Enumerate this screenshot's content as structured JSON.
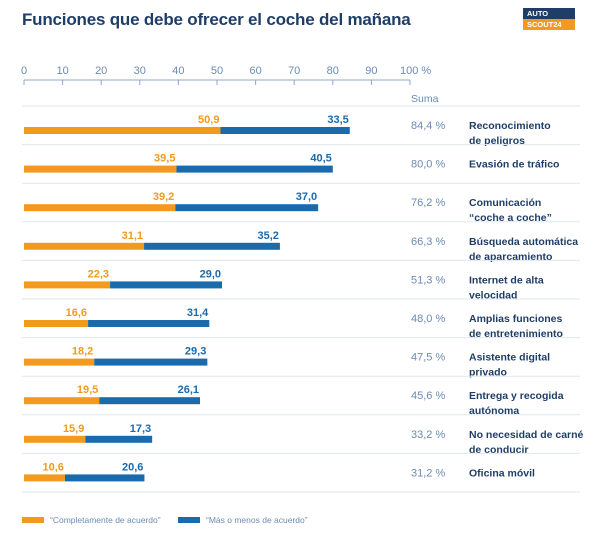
{
  "header": {
    "title": "Funciones que debe ofrecer el coche del mañana"
  },
  "logo": {
    "line1": "AUTO",
    "line2": "SCOUT24"
  },
  "chart_data": {
    "type": "bar",
    "orientation": "horizontal",
    "stacked": true,
    "title": "Funciones que debe ofrecer el coche del mañana",
    "x_ticks": [
      "0",
      "10",
      "20",
      "30",
      "40",
      "50",
      "60",
      "70",
      "80",
      "90",
      "100 %"
    ],
    "xlim": [
      0,
      100
    ],
    "sum_header": "Suma",
    "categories": [
      [
        "Reconocimiento",
        "de peligros"
      ],
      [
        "Evasión de tráfico"
      ],
      [
        "Comunicación",
        "“coche a coche”"
      ],
      [
        "Búsqueda automática",
        "de aparcamiento"
      ],
      [
        "Internet de alta",
        "velocidad"
      ],
      [
        "Amplias funciones",
        "de entretenimiento"
      ],
      [
        "Asistente digital",
        "privado"
      ],
      [
        "Entrega y recogida",
        "autónoma"
      ],
      [
        "No necesidad de carné",
        "de conducir"
      ],
      [
        "Oficina móvil"
      ]
    ],
    "series": [
      {
        "name": "“Completamente de acuerdo”",
        "color": "#f39a1e",
        "values": [
          50.9,
          39.5,
          39.2,
          31.1,
          22.3,
          16.6,
          18.2,
          19.5,
          15.9,
          10.6
        ],
        "labels": [
          "50,9",
          "39,5",
          "39,2",
          "31,1",
          "22,3",
          "16,6",
          "18,2",
          "19,5",
          "15,9",
          "10,6"
        ]
      },
      {
        "name": "“Más o menos de acuerdo”",
        "color": "#1a6aae",
        "values": [
          33.5,
          40.5,
          37.0,
          35.2,
          29.0,
          31.4,
          29.3,
          26.1,
          17.3,
          20.6
        ],
        "labels": [
          "33,5",
          "40,5",
          "37,0",
          "35,2",
          "29,0",
          "31,4",
          "29,3",
          "26,1",
          "17,3",
          "20,6"
        ]
      }
    ],
    "sums": [
      "84,4 %",
      "80,0 %",
      "76,2 %",
      "66,3 %",
      "51,3 %",
      "48,0 %",
      "47,5 %",
      "45,6 %",
      "33,2 %",
      "31,2 %"
    ]
  }
}
